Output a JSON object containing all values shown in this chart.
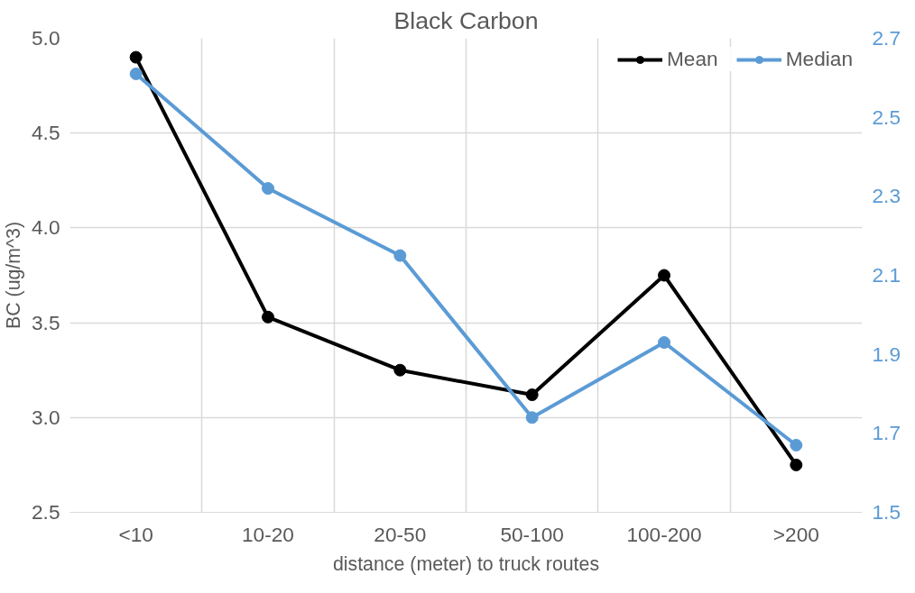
{
  "chart_data": {
    "type": "line",
    "title": "Black Carbon",
    "xlabel": "distance (meter) to truck routes",
    "ylabel": "BC (ug/m^3)",
    "categories": [
      "<10",
      "10-20",
      "20-50",
      "50-100",
      "100-200",
      ">200"
    ],
    "series": [
      {
        "name": "Mean",
        "color": "#000000",
        "values": [
          4.9,
          3.53,
          3.25,
          3.12,
          3.75,
          2.75
        ]
      },
      {
        "name": "Median",
        "color": "#5b9bd5",
        "axis": "y2",
        "values": [
          2.61,
          2.32,
          2.15,
          1.74,
          1.93,
          1.67
        ]
      }
    ],
    "ylim": [
      2.5,
      5.0
    ],
    "yticks": [
      2.5,
      {
        "value": 3,
        "label": "3.0"
      },
      3.5,
      {
        "value": 4,
        "label": "4.0"
      },
      4.5,
      {
        "value": 5,
        "label": "5.0"
      }
    ],
    "y2lim": [
      1.5,
      2.7
    ],
    "y2ticks": [
      1.5,
      1.7,
      1.9,
      2.1,
      2.3,
      2.5,
      2.7
    ],
    "grid": true,
    "legend": "top right",
    "marker": "circle",
    "line_style": "solid"
  }
}
